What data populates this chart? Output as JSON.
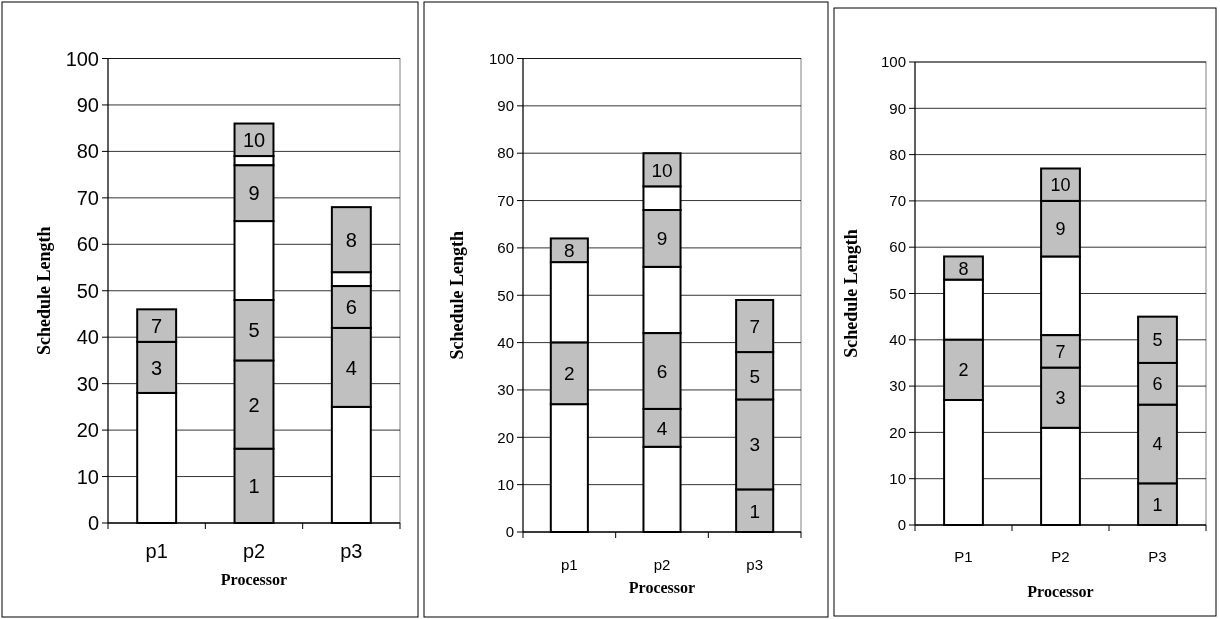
{
  "chart_data": [
    {
      "type": "bar",
      "xlabel": "Processor",
      "ylabel": "Schedule Length",
      "categories": [
        "p1",
        "p2",
        "p3"
      ],
      "ylim": [
        0,
        100
      ],
      "yticks": [
        0,
        10,
        20,
        30,
        40,
        50,
        60,
        70,
        80,
        90,
        100
      ],
      "grid": "y",
      "series": [
        {
          "color": "#ffffff",
          "values": [
            28,
            null,
            25
          ],
          "base": [
            0,
            null,
            0
          ]
        },
        {
          "color": "#ffffff",
          "values": [
            null,
            17,
            3
          ],
          "base": [
            null,
            48,
            51
          ]
        },
        {
          "color": "#ffffff",
          "values": [
            null,
            2,
            null
          ],
          "base": [
            null,
            77,
            null
          ]
        },
        {
          "name": "1",
          "color": "#c0c0c0",
          "values": [
            null,
            16,
            null
          ],
          "base": [
            null,
            0,
            null
          ]
        },
        {
          "name": "2",
          "color": "#c0c0c0",
          "values": [
            null,
            19,
            null
          ],
          "base": [
            null,
            16,
            null
          ]
        },
        {
          "name": "3",
          "color": "#c0c0c0",
          "values": [
            11,
            null,
            null
          ],
          "base": [
            28,
            null,
            null
          ]
        },
        {
          "name": "4",
          "color": "#c0c0c0",
          "values": [
            null,
            null,
            17
          ],
          "base": [
            null,
            null,
            25
          ]
        },
        {
          "name": "5",
          "color": "#c0c0c0",
          "values": [
            null,
            13,
            null
          ],
          "base": [
            null,
            35,
            null
          ]
        },
        {
          "name": "6",
          "color": "#c0c0c0",
          "values": [
            null,
            null,
            9
          ],
          "base": [
            null,
            null,
            42
          ]
        },
        {
          "name": "7",
          "color": "#c0c0c0",
          "values": [
            7,
            null,
            null
          ],
          "base": [
            39,
            null,
            null
          ]
        },
        {
          "name": "8",
          "color": "#c0c0c0",
          "values": [
            null,
            null,
            14
          ],
          "base": [
            null,
            null,
            54
          ]
        },
        {
          "name": "9",
          "color": "#c0c0c0",
          "values": [
            null,
            12,
            null
          ],
          "base": [
            null,
            65,
            null
          ]
        },
        {
          "name": "10",
          "color": "#c0c0c0",
          "values": [
            null,
            7,
            null
          ],
          "base": [
            null,
            79,
            null
          ]
        }
      ]
    },
    {
      "type": "bar",
      "xlabel": "Processor",
      "ylabel": "Schedule Length",
      "categories": [
        "p1",
        "p2",
        "p3"
      ],
      "ylim": [
        0,
        100
      ],
      "yticks": [
        0,
        10,
        20,
        30,
        40,
        50,
        60,
        70,
        80,
        90,
        100
      ],
      "grid": "y",
      "series": [
        {
          "color": "#ffffff",
          "values": [
            27,
            18,
            null
          ],
          "base": [
            0,
            0,
            null
          ]
        },
        {
          "color": "#ffffff",
          "values": [
            17,
            14,
            null
          ],
          "base": [
            40,
            42,
            null
          ]
        },
        {
          "color": "#ffffff",
          "values": [
            null,
            5,
            null
          ],
          "base": [
            null,
            68,
            null
          ]
        },
        {
          "name": "1",
          "color": "#c0c0c0",
          "values": [
            null,
            null,
            9
          ],
          "base": [
            null,
            null,
            0
          ]
        },
        {
          "name": "2",
          "color": "#c0c0c0",
          "values": [
            13,
            null,
            null
          ],
          "base": [
            27,
            null,
            null
          ]
        },
        {
          "name": "3",
          "color": "#c0c0c0",
          "values": [
            null,
            null,
            19
          ],
          "base": [
            null,
            null,
            9
          ]
        },
        {
          "name": "4",
          "color": "#c0c0c0",
          "values": [
            null,
            8,
            null
          ],
          "base": [
            null,
            18,
            null
          ]
        },
        {
          "name": "5",
          "color": "#c0c0c0",
          "values": [
            null,
            null,
            10
          ],
          "base": [
            null,
            null,
            28
          ]
        },
        {
          "name": "6",
          "color": "#c0c0c0",
          "values": [
            null,
            16,
            null
          ],
          "base": [
            null,
            26,
            null
          ]
        },
        {
          "name": "7",
          "color": "#c0c0c0",
          "values": [
            null,
            null,
            11
          ],
          "base": [
            null,
            null,
            38
          ]
        },
        {
          "name": "8",
          "color": "#c0c0c0",
          "values": [
            5,
            null,
            null
          ],
          "base": [
            57,
            null,
            null
          ]
        },
        {
          "name": "9",
          "color": "#c0c0c0",
          "values": [
            null,
            12,
            null
          ],
          "base": [
            null,
            56,
            null
          ]
        },
        {
          "name": "10",
          "color": "#c0c0c0",
          "values": [
            null,
            7,
            null
          ],
          "base": [
            null,
            73,
            null
          ]
        }
      ]
    },
    {
      "type": "bar",
      "xlabel": "Processor",
      "ylabel": "Schedule Length",
      "categories": [
        "P1",
        "P2",
        "P3"
      ],
      "ylim": [
        0,
        100
      ],
      "yticks": [
        0,
        10,
        20,
        30,
        40,
        50,
        60,
        70,
        80,
        90,
        100
      ],
      "grid": "y",
      "series": [
        {
          "color": "#ffffff",
          "values": [
            27,
            21,
            null
          ],
          "base": [
            0,
            0,
            null
          ]
        },
        {
          "color": "#ffffff",
          "values": [
            13,
            17,
            null
          ],
          "base": [
            40,
            41,
            null
          ]
        },
        {
          "name": "1",
          "color": "#c0c0c0",
          "values": [
            null,
            null,
            9
          ],
          "base": [
            null,
            null,
            0
          ]
        },
        {
          "name": "2",
          "color": "#c0c0c0",
          "values": [
            13,
            null,
            null
          ],
          "base": [
            27,
            null,
            null
          ]
        },
        {
          "name": "3",
          "color": "#c0c0c0",
          "values": [
            null,
            13,
            null
          ],
          "base": [
            null,
            21,
            null
          ]
        },
        {
          "name": "4",
          "color": "#c0c0c0",
          "values": [
            null,
            null,
            17
          ],
          "base": [
            null,
            null,
            9
          ]
        },
        {
          "name": "5",
          "color": "#c0c0c0",
          "values": [
            null,
            null,
            10
          ],
          "base": [
            null,
            null,
            35
          ]
        },
        {
          "name": "6",
          "color": "#c0c0c0",
          "values": [
            null,
            null,
            9
          ],
          "base": [
            null,
            null,
            26
          ]
        },
        {
          "name": "7",
          "color": "#c0c0c0",
          "values": [
            null,
            7,
            null
          ],
          "base": [
            null,
            34,
            null
          ]
        },
        {
          "name": "8",
          "color": "#c0c0c0",
          "values": [
            5,
            null,
            null
          ],
          "base": [
            53,
            null,
            null
          ]
        },
        {
          "name": "9",
          "color": "#c0c0c0",
          "values": [
            null,
            12,
            null
          ],
          "base": [
            null,
            58,
            null
          ]
        },
        {
          "name": "10",
          "color": "#c0c0c0",
          "values": [
            null,
            7,
            null
          ],
          "base": [
            null,
            70,
            null
          ]
        }
      ]
    }
  ]
}
